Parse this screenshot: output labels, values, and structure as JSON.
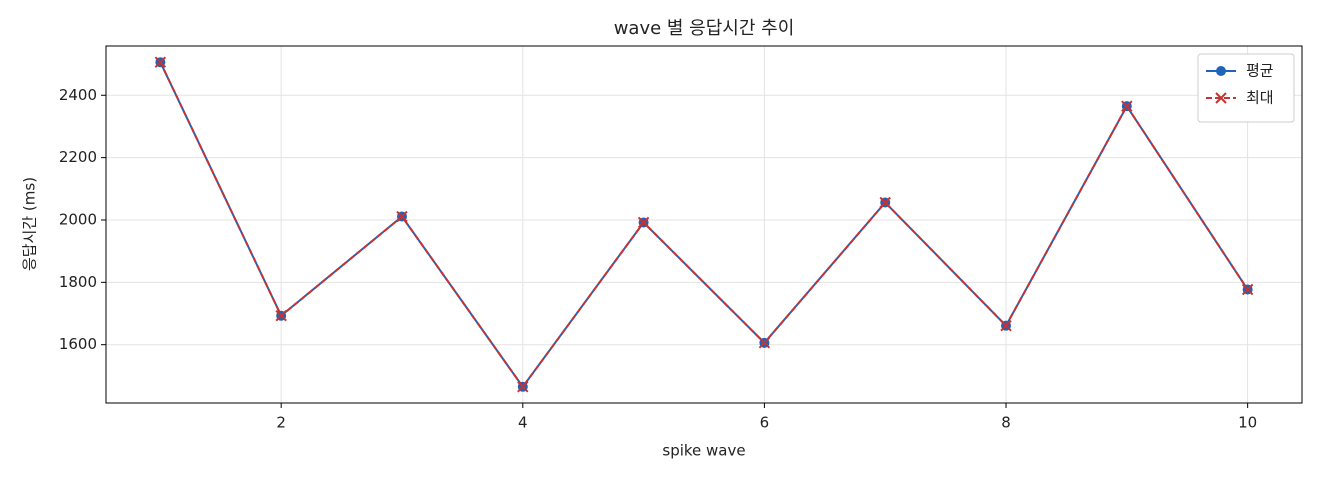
{
  "chart_data": {
    "type": "line",
    "title": "wave 별 응답시간 추이",
    "x_label": "spike wave",
    "y_label": "응답시간 (ms)",
    "x": [
      1,
      2,
      3,
      4,
      5,
      6,
      7,
      8,
      9,
      10
    ],
    "series": [
      {
        "name": "평균",
        "color": "#1f64b8",
        "marker": "circle",
        "dash": false,
        "values": [
          2506,
          1693,
          2011,
          1465,
          1992,
          1606,
          2056,
          1661,
          2365,
          1777
        ]
      },
      {
        "name": "최대",
        "color": "#c83232",
        "marker": "x",
        "dash": true,
        "values": [
          2506,
          1693,
          2011,
          1465,
          1992,
          1606,
          2056,
          1661,
          2365,
          1777
        ]
      }
    ],
    "xlim": [
      0.55,
      10.45
    ],
    "ylim": [
      1413,
      2558
    ],
    "xticks": [
      2,
      4,
      6,
      8,
      10
    ],
    "yticks": [
      1600,
      1800,
      2000,
      2200,
      2400
    ],
    "grid": true,
    "legend": "upper right"
  }
}
